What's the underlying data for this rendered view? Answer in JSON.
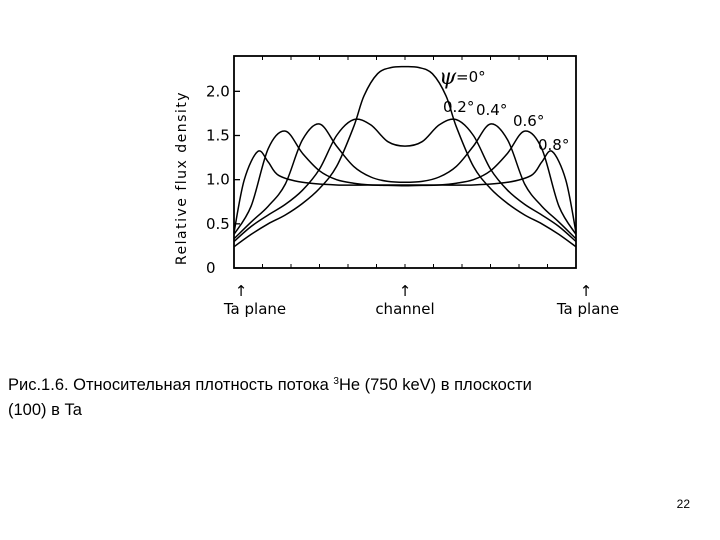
{
  "slide": {
    "caption_prefix": "Рис.1.6. Относительная плотность потока ",
    "caption_isotope_mass": "3",
    "caption_suffix": "He (750 keV) в плоскости",
    "caption_line2": " (100) в Ta",
    "page_number": "22"
  },
  "chart_data": {
    "type": "line",
    "title": "",
    "xlabel": "",
    "ylabel": "Relative flux density",
    "ylim": [
      0,
      2.4
    ],
    "xlim": [
      0,
      1
    ],
    "y_ticks": [
      {
        "value": 0,
        "label": "0"
      },
      {
        "value": 0.5,
        "label": "0.5"
      },
      {
        "value": 1.0,
        "label": "1.0"
      },
      {
        "value": 1.5,
        "label": "1.5"
      },
      {
        "value": 2.0,
        "label": "2.0"
      }
    ],
    "x_position_labels": [
      {
        "x": 0.0,
        "label": "Ta plane"
      },
      {
        "x": 0.5,
        "label": "channel"
      },
      {
        "x": 1.0,
        "label": "Ta plane"
      }
    ],
    "psi_symbol": "ψ",
    "series": [
      {
        "name": "=0°",
        "x": [
          0,
          0.05,
          0.1,
          0.15,
          0.2,
          0.25,
          0.3,
          0.35,
          0.38,
          0.42,
          0.46,
          0.5,
          0.54,
          0.58,
          0.62,
          0.65,
          0.7,
          0.75,
          0.8,
          0.85,
          0.9,
          0.95,
          1.0
        ],
        "y": [
          0.24,
          0.38,
          0.5,
          0.6,
          0.73,
          0.9,
          1.15,
          1.6,
          1.95,
          2.2,
          2.27,
          2.28,
          2.27,
          2.2,
          1.95,
          1.6,
          1.15,
          0.9,
          0.73,
          0.6,
          0.5,
          0.38,
          0.24
        ]
      },
      {
        "name": "0.2°",
        "x": [
          0,
          0.05,
          0.1,
          0.15,
          0.2,
          0.25,
          0.3,
          0.35,
          0.4,
          0.45,
          0.5,
          0.55,
          0.6,
          0.65,
          0.7,
          0.75,
          0.8,
          0.85,
          0.9,
          0.95,
          1.0
        ],
        "y": [
          0.3,
          0.47,
          0.6,
          0.72,
          0.88,
          1.12,
          1.5,
          1.68,
          1.62,
          1.43,
          1.38,
          1.43,
          1.62,
          1.68,
          1.5,
          1.12,
          0.88,
          0.72,
          0.6,
          0.47,
          0.3
        ]
      },
      {
        "name": "0.4°",
        "x": [
          0,
          0.05,
          0.1,
          0.15,
          0.2,
          0.25,
          0.3,
          0.35,
          0.4,
          0.45,
          0.5,
          0.55,
          0.6,
          0.65,
          0.7,
          0.75,
          0.8,
          0.85,
          0.9,
          0.95,
          1.0
        ],
        "y": [
          0.33,
          0.52,
          0.7,
          0.95,
          1.45,
          1.63,
          1.38,
          1.15,
          1.03,
          0.98,
          0.97,
          0.98,
          1.03,
          1.15,
          1.38,
          1.63,
          1.45,
          0.95,
          0.7,
          0.52,
          0.33
        ]
      },
      {
        "name": "0.6°",
        "x": [
          0,
          0.05,
          0.1,
          0.15,
          0.2,
          0.25,
          0.3,
          0.35,
          0.4,
          0.45,
          0.5,
          0.55,
          0.6,
          0.65,
          0.7,
          0.75,
          0.8,
          0.85,
          0.9,
          0.95,
          1.0
        ],
        "y": [
          0.38,
          0.7,
          1.35,
          1.55,
          1.3,
          1.1,
          1.0,
          0.96,
          0.94,
          0.935,
          0.93,
          0.935,
          0.94,
          0.96,
          1.0,
          1.1,
          1.3,
          1.55,
          1.35,
          0.7,
          0.38
        ]
      },
      {
        "name": "0.8°",
        "x": [
          0,
          0.03,
          0.07,
          0.1,
          0.13,
          0.2,
          0.3,
          0.4,
          0.5,
          0.6,
          0.7,
          0.8,
          0.87,
          0.9,
          0.93,
          0.97,
          1.0
        ],
        "y": [
          0.4,
          1.0,
          1.32,
          1.2,
          1.05,
          0.97,
          0.94,
          0.94,
          0.94,
          0.94,
          0.94,
          0.97,
          1.05,
          1.2,
          1.32,
          1.0,
          0.4
        ]
      }
    ]
  }
}
